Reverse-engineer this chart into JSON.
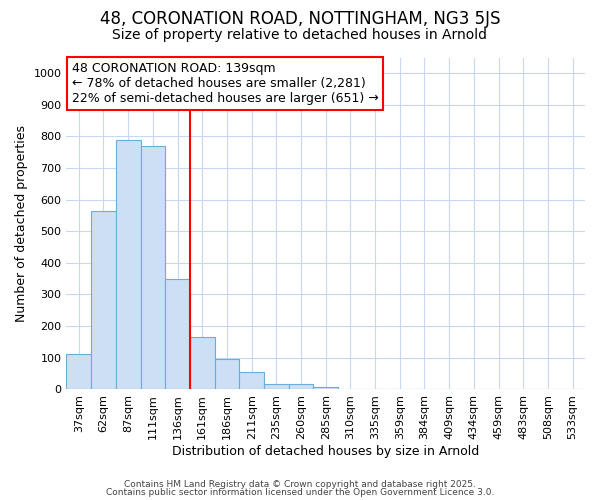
{
  "title1": "48, CORONATION ROAD, NOTTINGHAM, NG3 5JS",
  "title2": "Size of property relative to detached houses in Arnold",
  "xlabel": "Distribution of detached houses by size in Arnold",
  "ylabel": "Number of detached properties",
  "categories": [
    "37sqm",
    "62sqm",
    "87sqm",
    "111sqm",
    "136sqm",
    "161sqm",
    "186sqm",
    "211sqm",
    "235sqm",
    "260sqm",
    "285sqm",
    "310sqm",
    "335sqm",
    "359sqm",
    "384sqm",
    "409sqm",
    "434sqm",
    "459sqm",
    "483sqm",
    "508sqm",
    "533sqm"
  ],
  "values": [
    110,
    565,
    790,
    770,
    350,
    165,
    95,
    55,
    15,
    15,
    8,
    0,
    0,
    0,
    0,
    0,
    0,
    0,
    0,
    0,
    0
  ],
  "bar_color": "#ccdff5",
  "bar_edge_color": "#6aaed6",
  "red_line_x": 4.5,
  "annotation_text": "48 CORONATION ROAD: 139sqm\n← 78% of detached houses are smaller (2,281)\n22% of semi-detached houses are larger (651) →",
  "annotation_fontsize": 9,
  "ylim": [
    0,
    1050
  ],
  "yticks": [
    0,
    100,
    200,
    300,
    400,
    500,
    600,
    700,
    800,
    900,
    1000
  ],
  "background_color": "#ffffff",
  "plot_background": "#ffffff",
  "grid_color": "#c8d8f0",
  "footer1": "Contains HM Land Registry data © Crown copyright and database right 2025.",
  "footer2": "Contains public sector information licensed under the Open Government Licence 3.0.",
  "title1_fontsize": 12,
  "title2_fontsize": 10,
  "xlabel_fontsize": 9,
  "ylabel_fontsize": 9,
  "tick_fontsize": 8
}
